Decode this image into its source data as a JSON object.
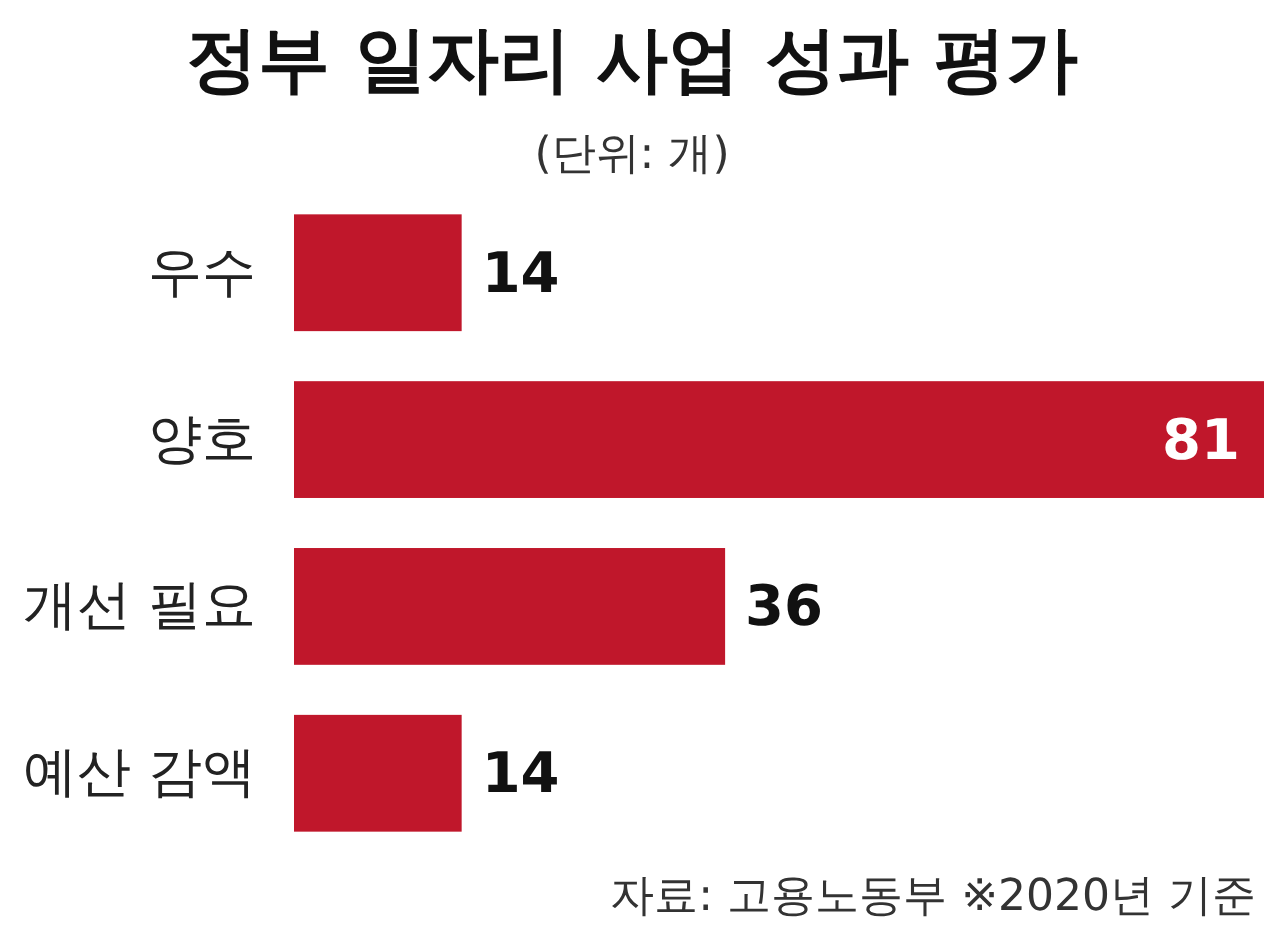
{
  "chart_data": {
    "type": "bar",
    "orientation": "horizontal",
    "title": "정부 일자리 사업 성과 평가",
    "subtitle": "(단위: 개)",
    "categories": [
      "우수",
      "양호",
      "개선 필요",
      "예산 감액"
    ],
    "values": [
      14,
      81,
      36,
      14
    ],
    "color": "#c0172b",
    "data_labels": true,
    "annotations": [
      "자료: 고용노동부 ※2020년 기준"
    ]
  }
}
